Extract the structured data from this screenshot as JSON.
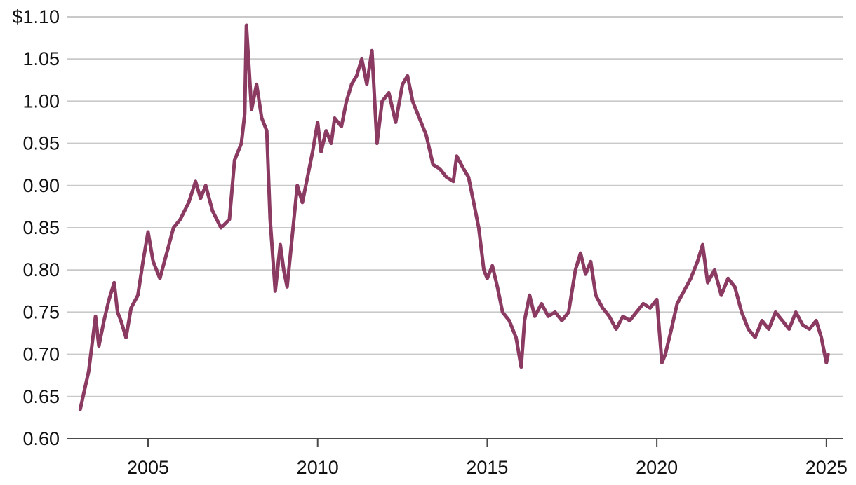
{
  "chart_data": {
    "type": "line",
    "title": "",
    "xlabel": "",
    "ylabel": "",
    "ylim": [
      0.6,
      1.1
    ],
    "xlim": [
      2002.6,
      2025.5
    ],
    "grid": true,
    "legend": "none",
    "y_ticks": [
      0.6,
      0.65,
      0.7,
      0.75,
      0.8,
      0.85,
      0.9,
      0.95,
      1.0,
      1.05,
      1.1
    ],
    "y_tick_labels": [
      "0.60",
      "0.65",
      "0.70",
      "0.75",
      "0.80",
      "0.85",
      "0.90",
      "0.95",
      "1.00",
      "1.05",
      "$1.10"
    ],
    "x_ticks": [
      2005,
      2010,
      2015,
      2020,
      2025
    ],
    "x_tick_labels": [
      "2005",
      "2010",
      "2015",
      "2020",
      "2025"
    ],
    "colors": {
      "series": "#8b3a62",
      "grid": "#c9c9c9",
      "axis": "#4a4a4a"
    },
    "series": [
      {
        "x": [
          2003.0,
          2003.25,
          2003.45,
          2003.55,
          2003.7,
          2003.85,
          2004.0,
          2004.1,
          2004.2,
          2004.35,
          2004.5,
          2004.7,
          2004.85,
          2005.0,
          2005.15,
          2005.35,
          2005.55,
          2005.75,
          2005.95,
          2006.2,
          2006.4,
          2006.55,
          2006.7,
          2006.9,
          2007.15,
          2007.4,
          2007.55,
          2007.75,
          2007.85,
          2007.9,
          2008.05,
          2008.2,
          2008.35,
          2008.5,
          2008.6,
          2008.75,
          2008.9,
          2009.0,
          2009.1,
          2009.25,
          2009.4,
          2009.55,
          2009.7,
          2009.85,
          2010.0,
          2010.1,
          2010.25,
          2010.4,
          2010.5,
          2010.7,
          2010.85,
          2011.0,
          2011.15,
          2011.3,
          2011.45,
          2011.6,
          2011.75,
          2011.9,
          2012.1,
          2012.3,
          2012.5,
          2012.65,
          2012.8,
          2013.0,
          2013.2,
          2013.4,
          2013.6,
          2013.8,
          2014.0,
          2014.1,
          2014.3,
          2014.45,
          2014.6,
          2014.75,
          2014.9,
          2015.0,
          2015.15,
          2015.3,
          2015.45,
          2015.65,
          2015.85,
          2016.0,
          2016.1,
          2016.25,
          2016.4,
          2016.6,
          2016.8,
          2017.0,
          2017.2,
          2017.4,
          2017.6,
          2017.75,
          2017.9,
          2018.05,
          2018.2,
          2018.4,
          2018.6,
          2018.8,
          2019.0,
          2019.2,
          2019.4,
          2019.6,
          2019.8,
          2020.0,
          2020.15,
          2020.25,
          2020.4,
          2020.6,
          2020.8,
          2021.0,
          2021.2,
          2021.35,
          2021.5,
          2021.7,
          2021.9,
          2022.1,
          2022.3,
          2022.5,
          2022.7,
          2022.9,
          2023.1,
          2023.3,
          2023.5,
          2023.7,
          2023.9,
          2024.1,
          2024.3,
          2024.5,
          2024.7,
          2024.85,
          2025.0,
          2025.05
        ],
        "y": [
          0.635,
          0.68,
          0.745,
          0.71,
          0.74,
          0.765,
          0.785,
          0.75,
          0.74,
          0.72,
          0.755,
          0.77,
          0.81,
          0.845,
          0.81,
          0.79,
          0.82,
          0.85,
          0.86,
          0.88,
          0.905,
          0.885,
          0.9,
          0.87,
          0.85,
          0.86,
          0.93,
          0.95,
          0.985,
          1.09,
          0.99,
          1.02,
          0.98,
          0.965,
          0.86,
          0.775,
          0.83,
          0.8,
          0.78,
          0.84,
          0.9,
          0.88,
          0.91,
          0.94,
          0.975,
          0.94,
          0.965,
          0.95,
          0.98,
          0.97,
          1.0,
          1.02,
          1.03,
          1.05,
          1.02,
          1.06,
          0.95,
          1.0,
          1.01,
          0.975,
          1.02,
          1.03,
          1.0,
          0.98,
          0.96,
          0.925,
          0.92,
          0.91,
          0.905,
          0.935,
          0.92,
          0.91,
          0.88,
          0.85,
          0.8,
          0.79,
          0.805,
          0.78,
          0.75,
          0.74,
          0.72,
          0.685,
          0.74,
          0.77,
          0.745,
          0.76,
          0.745,
          0.75,
          0.74,
          0.75,
          0.8,
          0.82,
          0.795,
          0.81,
          0.77,
          0.755,
          0.745,
          0.73,
          0.745,
          0.74,
          0.75,
          0.76,
          0.755,
          0.765,
          0.69,
          0.7,
          0.725,
          0.76,
          0.775,
          0.79,
          0.81,
          0.83,
          0.785,
          0.8,
          0.77,
          0.79,
          0.78,
          0.75,
          0.73,
          0.72,
          0.74,
          0.73,
          0.75,
          0.74,
          0.73,
          0.75,
          0.735,
          0.73,
          0.74,
          0.72,
          0.69,
          0.7
        ]
      }
    ]
  }
}
